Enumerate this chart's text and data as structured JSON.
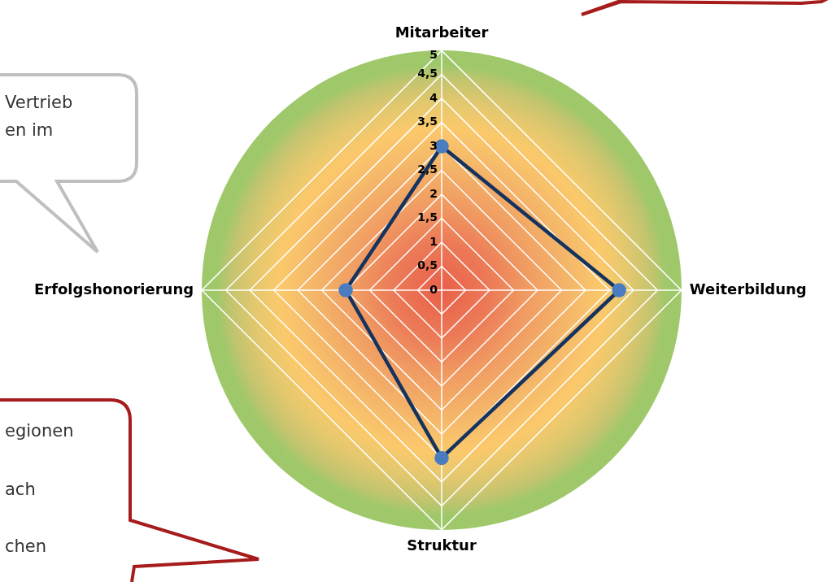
{
  "chart_data": {
    "type": "radar",
    "categories": [
      "Mitarbeiter",
      "Weiterbildung",
      "Struktur",
      "Erfolgshonorierung"
    ],
    "series": [
      {
        "color": "#15335f",
        "values": [
          3,
          3.7,
          3.5,
          2
        ]
      }
    ],
    "ylim": [
      0,
      5
    ],
    "yticks": [
      0,
      {
        "value": 0.5,
        "label": "0,5"
      },
      1,
      {
        "value": 1.5,
        "label": "1,5"
      },
      2,
      {
        "value": 2.5,
        "label": "2,5"
      },
      3,
      {
        "value": 3.5,
        "label": "3,5"
      },
      4,
      {
        "value": 4.5,
        "label": "4,5"
      },
      5
    ],
    "grid": true,
    "marker": "circle",
    "annotations": [
      "Vertrieb",
      "en im",
      "egionen",
      "ach",
      "chen"
    ]
  }
}
